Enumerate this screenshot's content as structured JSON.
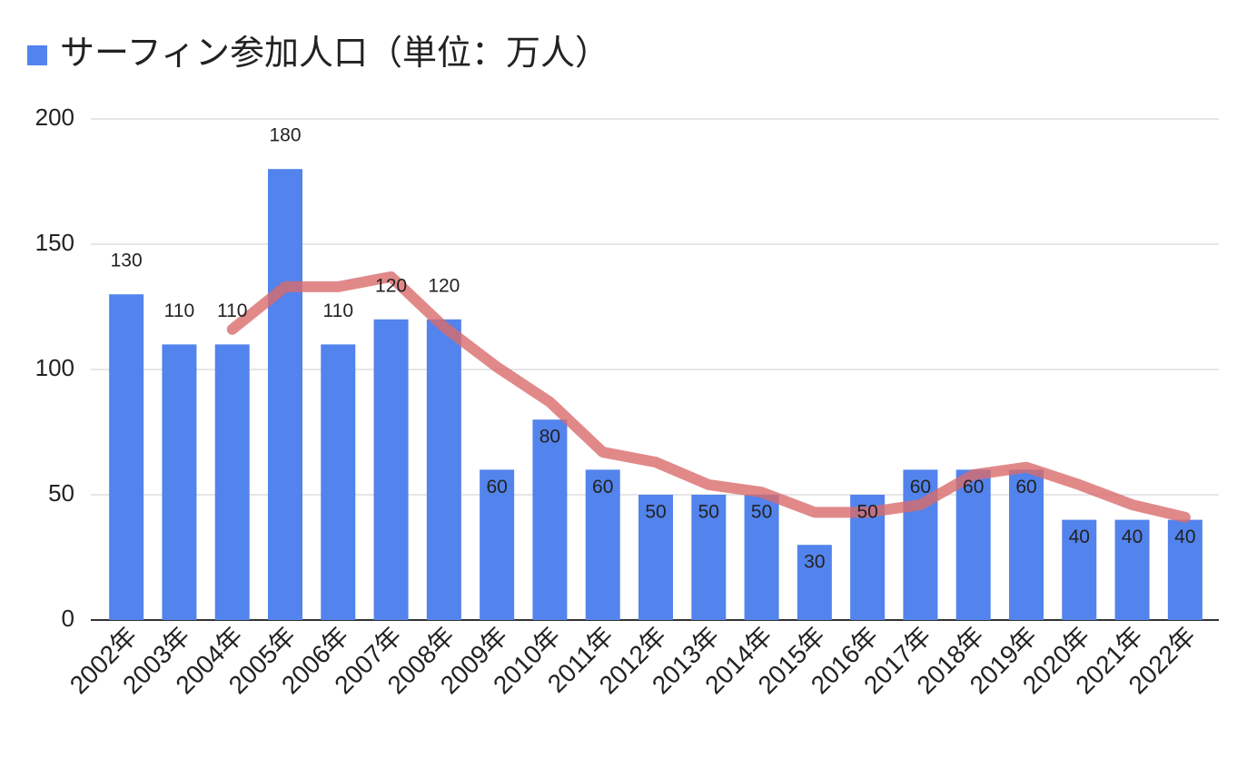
{
  "chart_data": {
    "type": "bar",
    "categories": [
      "2002年",
      "2003年",
      "2004年",
      "2005年",
      "2006年",
      "2007年",
      "2008年",
      "2009年",
      "2010年",
      "2011年",
      "2012年",
      "2013年",
      "2014年",
      "2015年",
      "2016年",
      "2017年",
      "2018年",
      "2019年",
      "2020年",
      "2021年",
      "2022年"
    ],
    "series": [
      {
        "name": "サーフィン参加人口（単位：万人）",
        "color": "#5383ec",
        "values": [
          130,
          110,
          110,
          180,
          110,
          120,
          120,
          60,
          80,
          60,
          50,
          50,
          50,
          30,
          50,
          60,
          60,
          60,
          40,
          40,
          40
        ]
      }
    ],
    "overlay": {
      "color": "#d96b6b",
      "values": [
        null,
        null,
        116,
        133,
        133,
        137,
        117,
        101,
        87,
        67,
        63,
        54,
        51,
        43,
        43,
        46,
        58,
        61,
        54,
        46,
        41
      ]
    },
    "ylim": [
      0,
      200
    ],
    "yticks": [
      0,
      50,
      100,
      150,
      200
    ],
    "grid": true,
    "legend": "top-left"
  }
}
